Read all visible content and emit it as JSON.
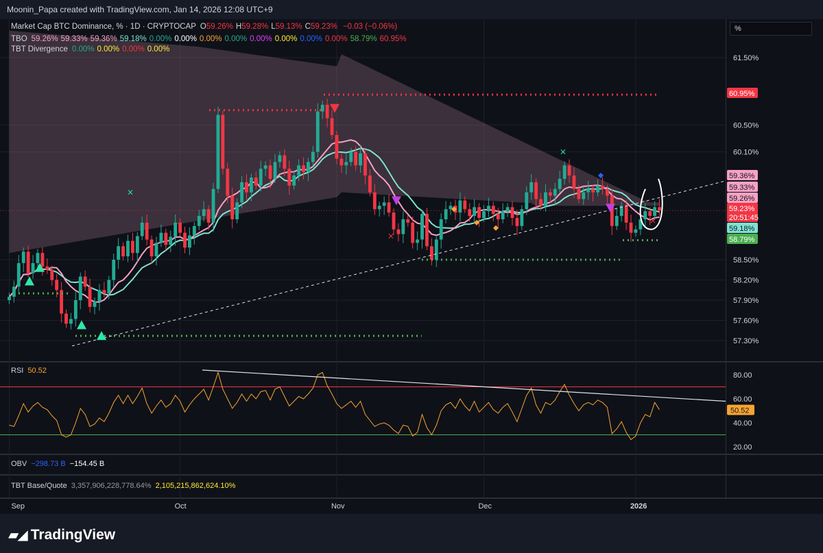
{
  "header": {
    "caption": "Moonin_Papa created with TradingView.com, Jan 14, 2026 12:08 UTC+9"
  },
  "unit_selector": "%",
  "legends": {
    "main": {
      "name": "Market Cap BTC Dominance, % · 1D · CRYPTOCAP",
      "ohlc": [
        {
          "k": "O",
          "v": "59.26%"
        },
        {
          "k": "H",
          "v": "59.28%"
        },
        {
          "k": "L",
          "v": "59.13%"
        },
        {
          "k": "C",
          "v": "59.23%"
        }
      ],
      "change": "−0.03 (−0.06%)",
      "color": "#f23645"
    },
    "tbo": {
      "name": "TBO",
      "values": [
        {
          "v": "59.26%",
          "c": "#f7a1c4"
        },
        {
          "v": "59.33%",
          "c": "#f7a1c4"
        },
        {
          "v": "59.36%",
          "c": "#f7a1c4"
        },
        {
          "v": "59.18%",
          "c": "#7fe3d2"
        },
        {
          "v": "0.00%",
          "c": "#22ab94"
        },
        {
          "v": "0.00%",
          "c": "#ffffff"
        },
        {
          "v": "0.00%",
          "c": "#f7a531"
        },
        {
          "v": "0.00%",
          "c": "#22ab94"
        },
        {
          "v": "0.00%",
          "c": "#e040fb"
        },
        {
          "v": "0.00%",
          "c": "#ffeb3b"
        },
        {
          "v": "0.00%",
          "c": "#2962ff"
        },
        {
          "v": "0.00%",
          "c": "#f23645"
        },
        {
          "v": "58.79%",
          "c": "#4caf50"
        },
        {
          "v": "60.95%",
          "c": "#f23645"
        }
      ]
    },
    "divergence": {
      "name": "TBT Divergence",
      "values": [
        {
          "v": "0.00%",
          "c": "#22ab94"
        },
        {
          "v": "0.00%",
          "c": "#ffeb3b"
        },
        {
          "v": "0.00%",
          "c": "#f23645"
        },
        {
          "v": "0.00%",
          "c": "#ffeb3b"
        }
      ]
    }
  },
  "rsi_legend": {
    "name": "RSI",
    "value": "50.52"
  },
  "obv_legend": {
    "name": "OBV",
    "v1": "−298.73 B",
    "v2": "−154.45 B"
  },
  "base_quote_legend": {
    "name": "TBT Base/Quote",
    "v1": "3,357,906,228,778.64%",
    "v2": "2,105,215,862,624.10%"
  },
  "brand": {
    "name": "TradingView"
  },
  "colors": {
    "up": "#22ab94",
    "down": "#f23645",
    "background": "#0f1118",
    "pink_line": "#f7a1c4",
    "teal_line": "#7fe3d2",
    "rsi": "#f7a531"
  },
  "chart_data": [
    {
      "type": "candlestick",
      "title": "Market Cap BTC Dominance, % · 1D · CRYPTOCAP",
      "x_ticks": [
        "Sep",
        "Oct",
        "Nov",
        "Dec",
        "2026"
      ],
      "y_ticks": [
        "61.50%",
        "60.50%",
        "60.10%",
        "58.50%",
        "58.20%",
        "57.90%",
        "57.60%",
        "57.30%"
      ],
      "ylim": [
        57.2,
        61.8
      ],
      "close": [
        57.95,
        58.1,
        58.45,
        58.62,
        58.3,
        58.45,
        58.6,
        58.4,
        58.35,
        58.2,
        58.05,
        57.7,
        57.55,
        57.62,
        57.9,
        58.25,
        58.1,
        57.8,
        57.88,
        58.05,
        58.0,
        58.2,
        58.5,
        58.7,
        58.55,
        58.78,
        58.6,
        58.85,
        59.05,
        58.8,
        58.55,
        58.75,
        58.9,
        58.72,
        58.84,
        59.05,
        58.9,
        58.68,
        58.86,
        59.0,
        59.15,
        59.25,
        59.05,
        59.55,
        60.65,
        59.85,
        59.45,
        59.1,
        59.35,
        59.65,
        59.5,
        59.72,
        59.6,
        59.85,
        59.9,
        59.7,
        59.95,
        60.05,
        59.85,
        59.6,
        59.75,
        59.9,
        59.8,
        59.95,
        60.1,
        60.7,
        60.8,
        60.6,
        60.35,
        60.0,
        59.9,
        59.95,
        60.1,
        59.9,
        60.08,
        59.75,
        59.5,
        59.25,
        59.3,
        59.35,
        59.2,
        58.95,
        58.88,
        59.1,
        59.05,
        58.75,
        58.8,
        59.18,
        58.7,
        58.5,
        58.8,
        59.1,
        59.25,
        59.3,
        59.2,
        59.38,
        59.25,
        59.15,
        59.28,
        59.12,
        59.22,
        59.3,
        59.18,
        59.1,
        59.22,
        59.28,
        59.12,
        59.0,
        59.25,
        59.5,
        59.65,
        59.4,
        59.3,
        59.5,
        59.45,
        59.55,
        59.7,
        59.9,
        59.75,
        59.55,
        59.4,
        59.5,
        59.55,
        59.5,
        59.6,
        59.55,
        59.45,
        59.0,
        59.15,
        59.3,
        59.05,
        58.9,
        58.95,
        59.1,
        59.22,
        59.15,
        59.28,
        59.23
      ],
      "rsi": {
        "name": "RSI",
        "last": 50.52,
        "y_ticks": [
          "80.00",
          "60.00",
          "40.00",
          "20.00"
        ],
        "ylim": [
          15,
          85
        ],
        "upper_band": 70,
        "lower_band": 30,
        "values": [
          38,
          37,
          46,
          56,
          49,
          54,
          57,
          53,
          51,
          46,
          42,
          30,
          28,
          30,
          40,
          52,
          47,
          37,
          39,
          44,
          41,
          48,
          57,
          63,
          56,
          63,
          56,
          62,
          69,
          56,
          48,
          54,
          59,
          53,
          56,
          63,
          58,
          49,
          55,
          60,
          64,
          68,
          59,
          70,
          82,
          68,
          60,
          52,
          57,
          64,
          58,
          64,
          60,
          66,
          67,
          59,
          68,
          70,
          62,
          54,
          58,
          62,
          60,
          64,
          69,
          80,
          82,
          71,
          64,
          56,
          52,
          55,
          58,
          53,
          58,
          47,
          42,
          37,
          39,
          40,
          38,
          34,
          31,
          38,
          37,
          29,
          32,
          47,
          36,
          30,
          38,
          50,
          55,
          57,
          52,
          60,
          54,
          50,
          58,
          49,
          53,
          57,
          51,
          48,
          53,
          56,
          49,
          41,
          52,
          63,
          69,
          55,
          48,
          57,
          55,
          59,
          66,
          72,
          63,
          56,
          50,
          55,
          57,
          55,
          59,
          57,
          53,
          31,
          35,
          41,
          32,
          26,
          29,
          40,
          47,
          45,
          57,
          51
        ]
      },
      "rsi_trendline": [
        [
          0,
          84
        ],
        [
          1.0,
          60
        ]
      ],
      "price_labels": [
        {
          "v": "60.95%",
          "c": "#f23645"
        },
        {
          "v": "59.36%",
          "c": "#f7a1c4"
        },
        {
          "v": "59.33%",
          "c": "#f7a1c4"
        },
        {
          "v": "59.26%",
          "c": "#f7a1c4"
        },
        {
          "v": "59.23%",
          "c": "#f23645"
        },
        {
          "v": "20:51:45",
          "c": "#f23645"
        },
        {
          "v": "59.18%",
          "c": "#7fe3d2"
        },
        {
          "v": "58.79%",
          "c": "#4caf50"
        }
      ]
    }
  ]
}
